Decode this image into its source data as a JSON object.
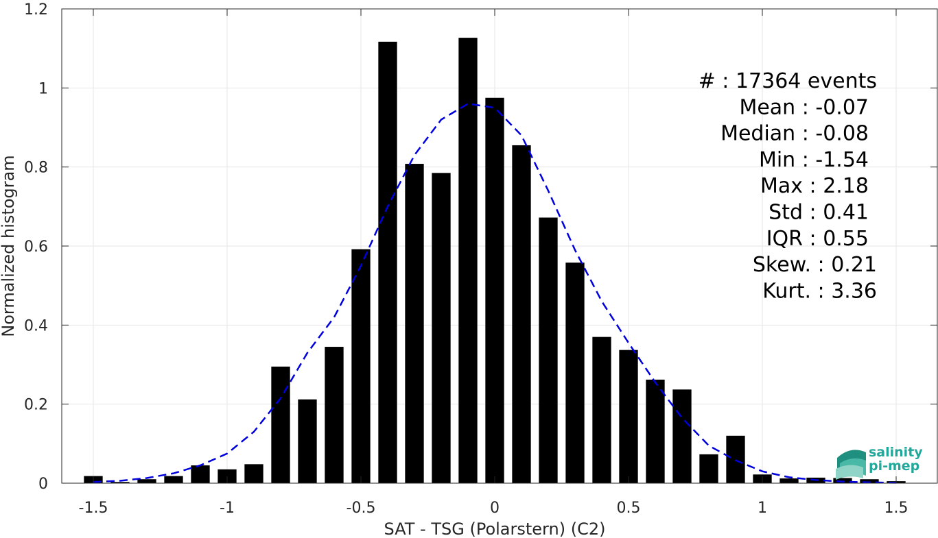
{
  "chart_data": {
    "type": "bar",
    "xlabel": "SAT - TSG (Polarstern) (C2)",
    "ylabel": "Normalized histogram",
    "xlim": [
      -1.55,
      1.6
    ],
    "ylim": [
      0,
      1.2
    ],
    "xticks": [
      -1.5,
      -1,
      -0.5,
      0,
      0.5,
      1,
      1.5
    ],
    "xtick_labels": [
      "-1.5",
      "-1",
      "-0.5",
      "0",
      "0.5",
      "1",
      "1.5"
    ],
    "yticks": [
      0,
      0.2,
      0.4,
      0.6,
      0.8,
      1,
      1.2
    ],
    "ytick_labels": [
      "0",
      "0.2",
      "0.4",
      "0.6",
      "0.8",
      "1",
      "1.2"
    ],
    "grid": true,
    "bar_width": 0.07,
    "bar_color": "#000000",
    "x": [
      -1.5,
      -1.4,
      -1.3,
      -1.2,
      -1.1,
      -1.0,
      -0.9,
      -0.8,
      -0.7,
      -0.6,
      -0.5,
      -0.4,
      -0.3,
      -0.2,
      -0.1,
      0.0,
      0.1,
      0.2,
      0.3,
      0.4,
      0.5,
      0.6,
      0.7,
      0.8,
      0.9,
      1.0,
      1.1,
      1.2,
      1.3,
      1.4,
      1.5
    ],
    "values": [
      0.018,
      0.003,
      0.01,
      0.018,
      0.045,
      0.035,
      0.048,
      0.295,
      0.212,
      0.345,
      0.592,
      1.117,
      0.808,
      0.785,
      1.127,
      0.975,
      0.855,
      0.672,
      0.558,
      0.37,
      0.337,
      0.262,
      0.237,
      0.073,
      0.12,
      0.022,
      0.012,
      0.014,
      0.013,
      0.01,
      0.005
    ],
    "fit_curve": {
      "style": "dashed",
      "color": "#0000dd",
      "x": [
        -1.5,
        -1.4,
        -1.3,
        -1.2,
        -1.1,
        -1.0,
        -0.9,
        -0.8,
        -0.7,
        -0.6,
        -0.5,
        -0.4,
        -0.3,
        -0.2,
        -0.1,
        0.0,
        0.1,
        0.2,
        0.3,
        0.4,
        0.5,
        0.6,
        0.7,
        0.8,
        0.9,
        1.0,
        1.1,
        1.2,
        1.3,
        1.4,
        1.5
      ],
      "y": [
        0.003,
        0.006,
        0.013,
        0.025,
        0.045,
        0.075,
        0.13,
        0.215,
        0.33,
        0.42,
        0.55,
        0.7,
        0.83,
        0.92,
        0.96,
        0.95,
        0.88,
        0.74,
        0.59,
        0.46,
        0.355,
        0.255,
        0.165,
        0.095,
        0.058,
        0.03,
        0.015,
        0.008,
        0.004,
        0.002,
        0.001
      ]
    },
    "annotations": [
      "#  : 17364 events",
      "Mean : -0.07",
      "Median : -0.08",
      "Min : -1.54",
      "Max : 2.18",
      "Std : 0.41",
      "IQR : 0.55",
      "Skew. : 0.21",
      "Kurt. : 3.36"
    ]
  },
  "logo": {
    "line1": "salinity",
    "line2": "pi-mep",
    "color": "#20a89a"
  }
}
